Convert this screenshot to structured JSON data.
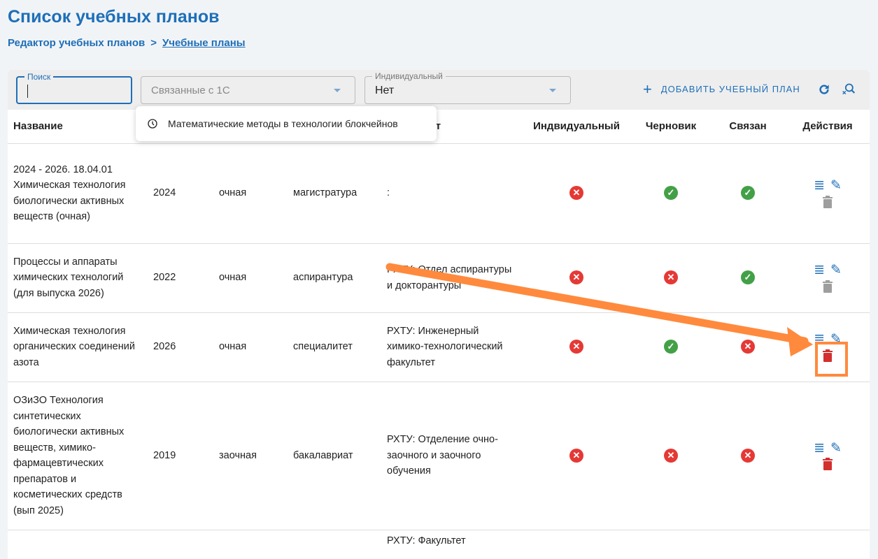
{
  "page": {
    "title": "Список учебных планов"
  },
  "breadcrumb": {
    "parent": "Редактор учебных планов",
    "separator": ">",
    "current": "Учебные планы"
  },
  "toolbar": {
    "search": {
      "label": "Поиск",
      "value": ""
    },
    "linked_filter": {
      "placeholder": "Связанные с 1С"
    },
    "individual_filter": {
      "label": "Индивидуальный",
      "value": "Нет"
    },
    "add_label": "ДОБАВИТЬ УЧЕБНЫЙ ПЛАН",
    "icons": [
      "plus-icon",
      "refresh-icon",
      "clear-search-icon"
    ]
  },
  "suggestion": {
    "text": "Математические методы в технологии блокчейнов",
    "icon": "history-icon"
  },
  "table": {
    "headers": {
      "name": "Название",
      "year": "",
      "form": "",
      "level": "",
      "faculty": "Факультет",
      "individual": "Индвидуальный",
      "draft": "Черновик",
      "linked": "Связан",
      "actions": "Действия"
    },
    "rows": [
      {
        "name": "2024 - 2026. 18.04.01 Химическая технология биологически активных веществ (очная)",
        "year": "2024",
        "form": "очная",
        "level": "магистратура",
        "faculty": ":",
        "individual": false,
        "draft": true,
        "linked": true,
        "delete_enabled": false
      },
      {
        "name": "Процессы и аппараты химических технологий (для выпуска 2026)",
        "year": "2022",
        "form": "очная",
        "level": "аспирантура",
        "faculty": "РХТУ: Отдел аспирантуры и докторантуры",
        "individual": false,
        "draft": false,
        "linked": true,
        "delete_enabled": false
      },
      {
        "name": "Химическая технология органических соединений азота",
        "year": "2026",
        "form": "очная",
        "level": "специалитет",
        "faculty": "РХТУ: Инженерный химико-технологический факультет",
        "individual": false,
        "draft": true,
        "linked": false,
        "delete_enabled": true
      },
      {
        "name": "ОЗиЗО Технология синтетических биологически активных веществ, химико-фармацевтических препаратов и косметических средств (вып 2025)",
        "year": "2019",
        "form": "заочная",
        "level": "бакалавриат",
        "faculty": "РХТУ: Отделение очно-заочного и заочного обучения",
        "individual": false,
        "draft": false,
        "linked": false,
        "delete_enabled": true
      },
      {
        "name": "",
        "year": "",
        "form": "",
        "level": "",
        "faculty": "РХТУ: Факультет",
        "individual": null,
        "draft": null,
        "linked": null,
        "delete_enabled": null
      }
    ]
  },
  "colors": {
    "accent": "#1e6fb8",
    "ok": "#43a047",
    "error": "#e53935",
    "annotation": "#ff8a3d",
    "delete_active": "#d32f2f",
    "delete_disabled": "#9e9e9e"
  }
}
